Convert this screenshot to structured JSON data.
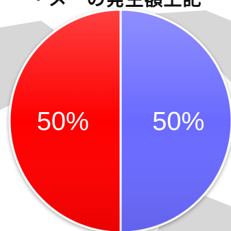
{
  "header": {
    "title_fragment": "・メーの発生額上記"
  },
  "colors": {
    "background": "#ffffff",
    "map_land": "#d7d7d7",
    "slice_red": "#fe0000",
    "slice_blue": "#6a6aff",
    "slice_divider": "#ffffff"
  },
  "chart_data": {
    "type": "pie",
    "categories": [
      "",
      ""
    ],
    "values": [
      50,
      50
    ],
    "labels": [
      "50%",
      "50%"
    ],
    "colors": [
      "#fe0000",
      "#6a6aff"
    ],
    "title": "",
    "start_angle": "12 o'clock",
    "direction": "counterclockwise",
    "legend": "none"
  }
}
